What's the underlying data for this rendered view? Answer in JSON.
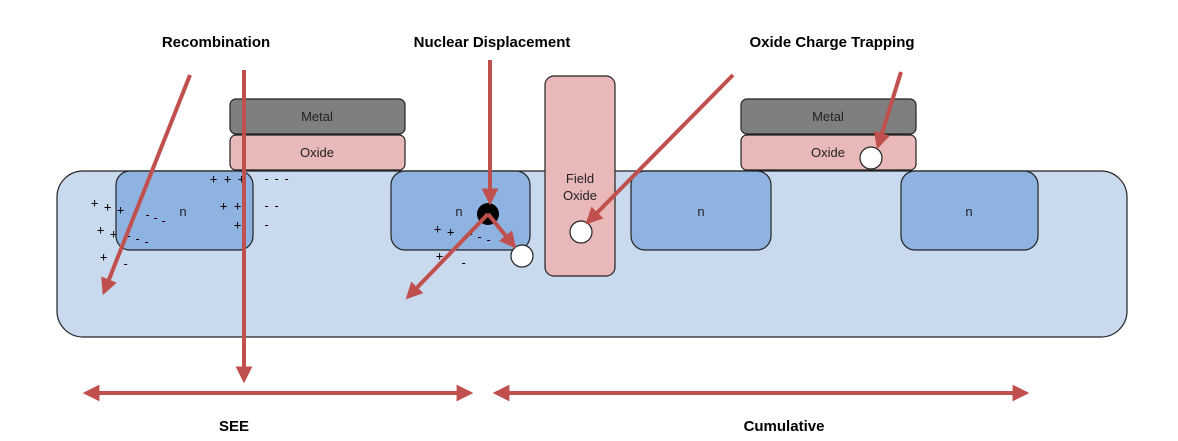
{
  "titles": {
    "recombination": "Recombination",
    "nuclear_displacement": "Nuclear Displacement",
    "oxide_charge_trapping": "Oxide Charge Trapping",
    "see": "SEE",
    "cumulative": "Cumulative"
  },
  "labels": {
    "metal_left": "Metal",
    "oxide_left": "Oxide",
    "metal_right": "Metal",
    "oxide_right": "Oxide",
    "field_oxide_line1": "Field",
    "field_oxide_line2": "Oxide",
    "n_region_1": "n",
    "n_region_2": "n",
    "n_region_3": "n",
    "n_region_4": "n"
  },
  "charges": {
    "plus_symbol": "+",
    "minus_symbol": "-"
  },
  "colors": {
    "substrate": "#c9d9ee",
    "n_region": "#8fb3e0",
    "oxide": "#e9b8b8",
    "metal": "#7f7f7f",
    "arrow": "#c0504d",
    "outline": "#222222"
  }
}
